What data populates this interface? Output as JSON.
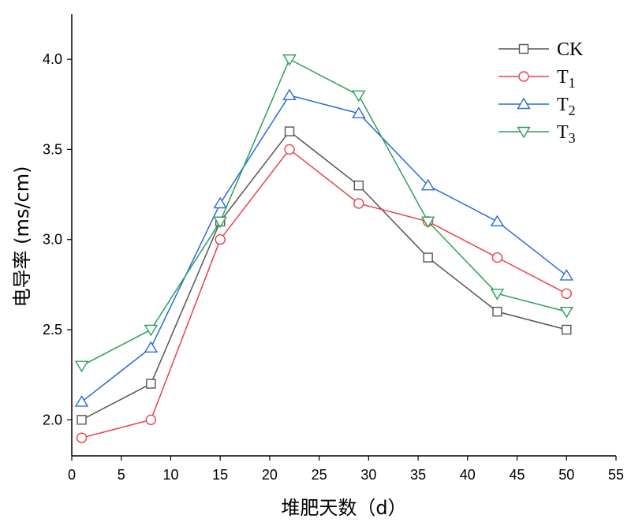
{
  "chart_data": {
    "type": "line",
    "xlabel": "堆肥天数（d）",
    "ylabel": "电导率 (ms/cm)",
    "x": [
      1,
      8,
      15,
      22,
      29,
      36,
      43,
      50
    ],
    "xlim": [
      0,
      55
    ],
    "ylim": [
      1.8,
      4.25
    ],
    "xticks": [
      0,
      5,
      10,
      15,
      20,
      25,
      30,
      35,
      40,
      45,
      50,
      55
    ],
    "xtick_labels": [
      "0",
      "5",
      "10",
      "15",
      "20",
      "25",
      "30",
      "35",
      "40",
      "45",
      "50",
      "55"
    ],
    "yticks": [
      2.0,
      2.5,
      3.0,
      3.5,
      4.0
    ],
    "ytick_labels": [
      "2.0",
      "2.5",
      "3.0",
      "3.5",
      "4.0"
    ],
    "grid": false,
    "legend_position": "top-right",
    "series": [
      {
        "name": "CK",
        "base": "CK",
        "sub": "",
        "marker": "square",
        "color": "#555555",
        "values": [
          2.0,
          2.2,
          3.1,
          3.6,
          3.3,
          2.9,
          2.6,
          2.5
        ]
      },
      {
        "name": "T1",
        "base": "T",
        "sub": "1",
        "marker": "circle",
        "color": "#e8424a",
        "values": [
          1.9,
          2.0,
          3.0,
          3.5,
          3.2,
          3.1,
          2.9,
          2.7
        ]
      },
      {
        "name": "T2",
        "base": "T",
        "sub": "2",
        "marker": "triangle-up",
        "color": "#2a6bd6",
        "values": [
          2.1,
          2.4,
          3.2,
          3.8,
          3.7,
          3.3,
          3.1,
          2.8
        ]
      },
      {
        "name": "T3",
        "base": "T",
        "sub": "3",
        "marker": "triangle-down",
        "color": "#2aa05a",
        "values": [
          2.3,
          2.5,
          3.1,
          4.0,
          3.8,
          3.1,
          2.7,
          2.6
        ]
      }
    ]
  }
}
